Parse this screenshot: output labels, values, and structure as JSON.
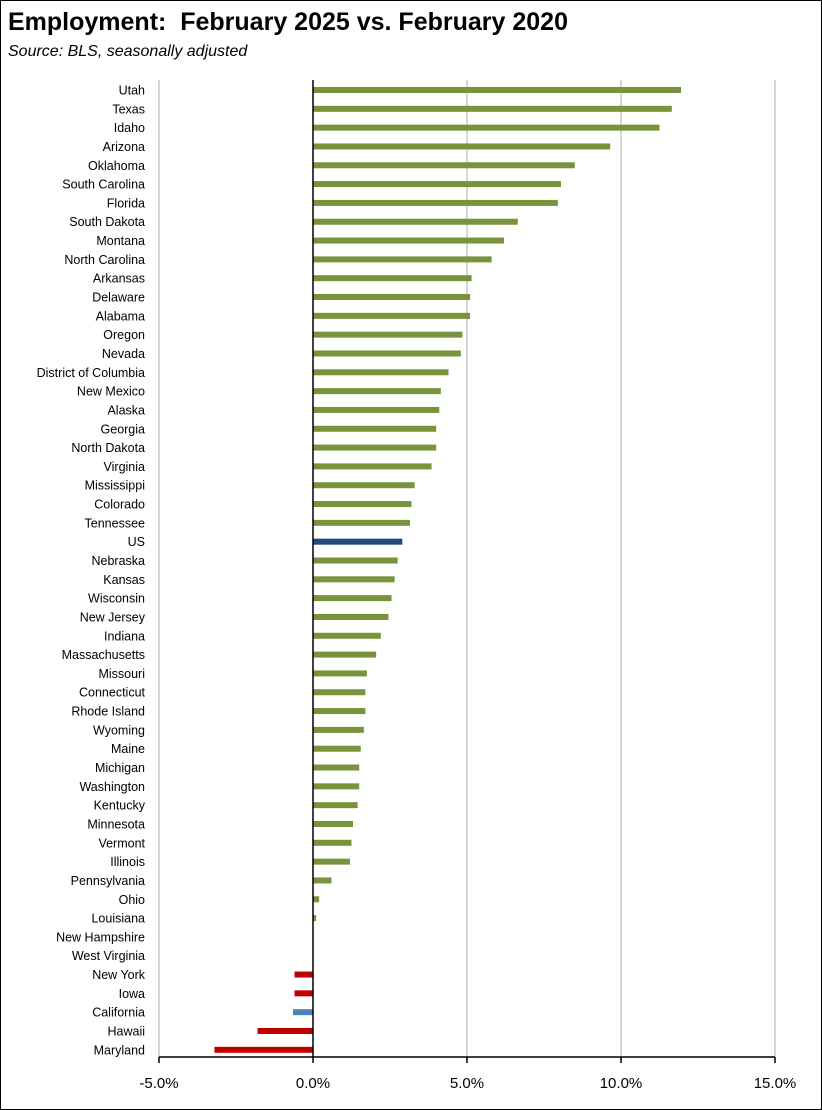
{
  "chart_data": {
    "type": "bar",
    "orientation": "horizontal",
    "title": "Employment:  February 2025 vs. February 2020",
    "subtitle": "Source:  BLS, seasonally adjusted",
    "xlim": [
      -5,
      15
    ],
    "xticks": [
      -5,
      0,
      5,
      10,
      15
    ],
    "xtick_labels": [
      "-5.0%",
      "0.0%",
      "5.0%",
      "10.0%",
      "15.0%"
    ],
    "grid": "vertical",
    "colors": {
      "positive": "#77933C",
      "negative": "#C00000",
      "us": "#1F497D",
      "california": "#4F81BD"
    },
    "bars": [
      {
        "label": "Utah",
        "value": 11.95,
        "color": "positive"
      },
      {
        "label": "Texas",
        "value": 11.65,
        "color": "positive"
      },
      {
        "label": "Idaho",
        "value": 11.25,
        "color": "positive"
      },
      {
        "label": "Arizona",
        "value": 9.65,
        "color": "positive"
      },
      {
        "label": "Oklahoma",
        "value": 8.5,
        "color": "positive"
      },
      {
        "label": "South Carolina",
        "value": 8.05,
        "color": "positive"
      },
      {
        "label": "Florida",
        "value": 7.95,
        "color": "positive"
      },
      {
        "label": "South Dakota",
        "value": 6.65,
        "color": "positive"
      },
      {
        "label": "Montana",
        "value": 6.2,
        "color": "positive"
      },
      {
        "label": "North Carolina",
        "value": 5.8,
        "color": "positive"
      },
      {
        "label": "Arkansas",
        "value": 5.15,
        "color": "positive"
      },
      {
        "label": "Delaware",
        "value": 5.1,
        "color": "positive"
      },
      {
        "label": "Alabama",
        "value": 5.1,
        "color": "positive"
      },
      {
        "label": "Oregon",
        "value": 4.85,
        "color": "positive"
      },
      {
        "label": "Nevada",
        "value": 4.8,
        "color": "positive"
      },
      {
        "label": "District of Columbia",
        "value": 4.4,
        "color": "positive"
      },
      {
        "label": "New Mexico",
        "value": 4.15,
        "color": "positive"
      },
      {
        "label": "Alaska",
        "value": 4.1,
        "color": "positive"
      },
      {
        "label": "Georgia",
        "value": 4.0,
        "color": "positive"
      },
      {
        "label": "North Dakota",
        "value": 4.0,
        "color": "positive"
      },
      {
        "label": "Virginia",
        "value": 3.85,
        "color": "positive"
      },
      {
        "label": "Mississippi",
        "value": 3.3,
        "color": "positive"
      },
      {
        "label": "Colorado",
        "value": 3.2,
        "color": "positive"
      },
      {
        "label": "Tennessee",
        "value": 3.15,
        "color": "positive"
      },
      {
        "label": "US",
        "value": 2.9,
        "color": "us"
      },
      {
        "label": "Nebraska",
        "value": 2.75,
        "color": "positive"
      },
      {
        "label": "Kansas",
        "value": 2.65,
        "color": "positive"
      },
      {
        "label": "Wisconsin",
        "value": 2.55,
        "color": "positive"
      },
      {
        "label": "New Jersey",
        "value": 2.45,
        "color": "positive"
      },
      {
        "label": "Indiana",
        "value": 2.2,
        "color": "positive"
      },
      {
        "label": "Massachusetts",
        "value": 2.05,
        "color": "positive"
      },
      {
        "label": "Missouri",
        "value": 1.75,
        "color": "positive"
      },
      {
        "label": "Connecticut",
        "value": 1.7,
        "color": "positive"
      },
      {
        "label": "Rhode Island",
        "value": 1.7,
        "color": "positive"
      },
      {
        "label": "Wyoming",
        "value": 1.65,
        "color": "positive"
      },
      {
        "label": "Maine",
        "value": 1.55,
        "color": "positive"
      },
      {
        "label": "Michigan",
        "value": 1.5,
        "color": "positive"
      },
      {
        "label": "Washington",
        "value": 1.5,
        "color": "positive"
      },
      {
        "label": "Kentucky",
        "value": 1.45,
        "color": "positive"
      },
      {
        "label": "Minnesota",
        "value": 1.3,
        "color": "positive"
      },
      {
        "label": "Vermont",
        "value": 1.25,
        "color": "positive"
      },
      {
        "label": "Illinois",
        "value": 1.2,
        "color": "positive"
      },
      {
        "label": "Pennsylvania",
        "value": 0.6,
        "color": "positive"
      },
      {
        "label": "Ohio",
        "value": 0.2,
        "color": "positive"
      },
      {
        "label": "Louisiana",
        "value": 0.1,
        "color": "positive"
      },
      {
        "label": "New Hampshire",
        "value": 0.0,
        "color": "positive"
      },
      {
        "label": "West Virginia",
        "value": 0.0,
        "color": "positive"
      },
      {
        "label": "New York",
        "value": -0.6,
        "color": "negative"
      },
      {
        "label": "Iowa",
        "value": -0.6,
        "color": "negative"
      },
      {
        "label": "California",
        "value": -0.65,
        "color": "california"
      },
      {
        "label": "Hawaii",
        "value": -1.8,
        "color": "negative"
      },
      {
        "label": "Maryland",
        "value": -3.2,
        "color": "negative"
      }
    ]
  }
}
